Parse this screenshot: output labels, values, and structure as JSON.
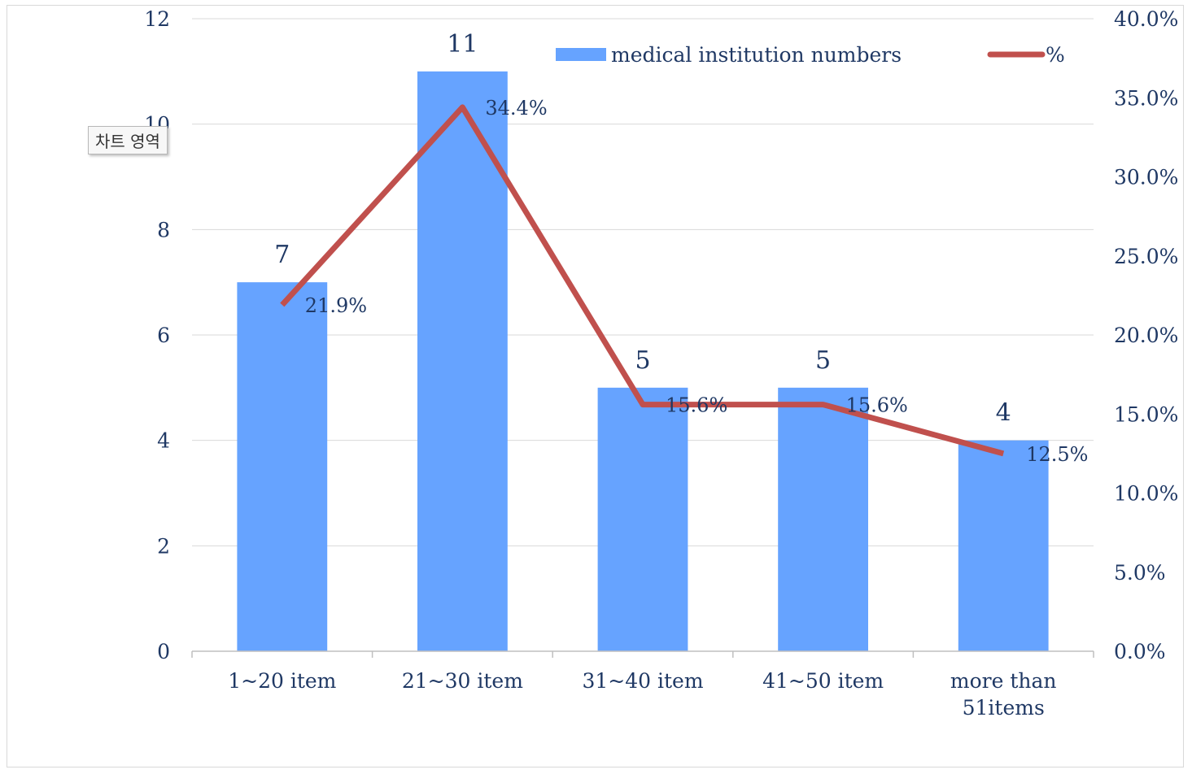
{
  "chart_data": {
    "type": "bar",
    "categories": [
      "1~20 item",
      "21~30 item",
      "31~40 item",
      "41~50 item",
      "more than 51items"
    ],
    "category_lines": [
      [
        "1~20 item"
      ],
      [
        "21~30 item"
      ],
      [
        "31~40 item"
      ],
      [
        "41~50 item"
      ],
      [
        "more than",
        "51items"
      ]
    ],
    "series": [
      {
        "name": "medical institution numbers",
        "kind": "bar",
        "axis": "left",
        "values": [
          7,
          11,
          5,
          5,
          4
        ],
        "labels": [
          "7",
          "11",
          "5",
          "5",
          "4"
        ]
      },
      {
        "name": "%",
        "kind": "line",
        "axis": "right",
        "values": [
          21.9,
          34.4,
          15.6,
          15.6,
          12.5
        ],
        "labels": [
          "21.9%",
          "34.4%",
          "15.6%",
          "15.6%",
          "12.5%"
        ]
      }
    ],
    "ylim": [
      0,
      12
    ],
    "y_ticks": [
      "0",
      "2",
      "4",
      "6",
      "8",
      "10",
      "12"
    ],
    "y2lim": [
      0,
      40
    ],
    "y2_ticks": [
      "0.0%",
      "5.0%",
      "10.0%",
      "15.0%",
      "20.0%",
      "25.0%",
      "30.0%",
      "35.0%",
      "40.0%"
    ],
    "grid": true,
    "legend": "top",
    "colors": {
      "bar": "#66a3ff",
      "line": "#c0504d",
      "text": "#1f3864",
      "grid": "#d9d9d9"
    }
  },
  "tooltip": {
    "label": "차트 영역"
  }
}
